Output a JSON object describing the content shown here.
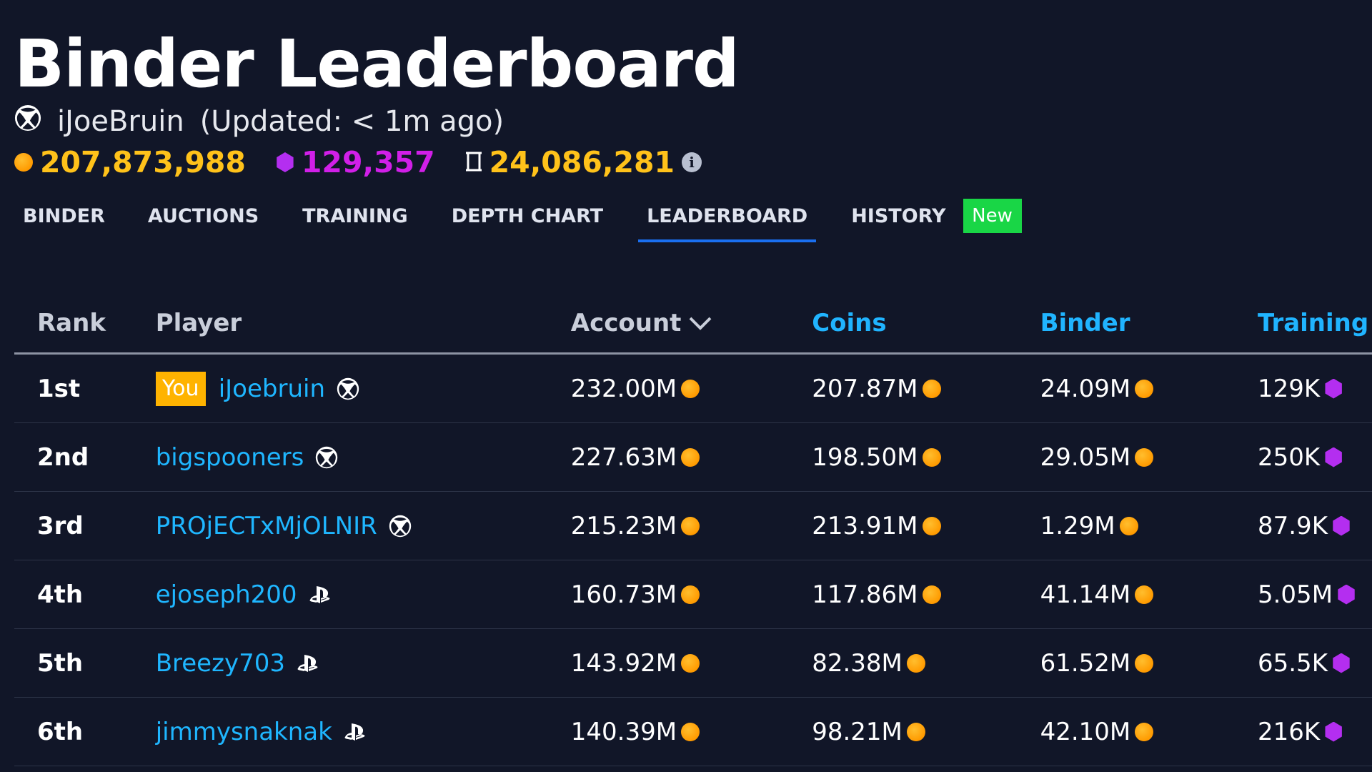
{
  "header": {
    "title": "Binder Leaderboard",
    "username": "iJoeBruin",
    "updated": "(Updated: < 1m ago)",
    "stats": {
      "coins": "207,873,988",
      "gems": "129,357",
      "binder": "24,086,281"
    }
  },
  "tabs": [
    {
      "label": "BINDER"
    },
    {
      "label": "AUCTIONS"
    },
    {
      "label": "TRAINING"
    },
    {
      "label": "DEPTH CHART"
    },
    {
      "label": "LEADERBOARD",
      "active": true
    },
    {
      "label": "HISTORY",
      "badge": "New"
    }
  ],
  "table": {
    "headers": {
      "rank": "Rank",
      "player": "Player",
      "account": "Account",
      "coins": "Coins",
      "binder": "Binder",
      "training": "Training"
    },
    "you_badge": "You",
    "rows": [
      {
        "rank": "1st",
        "player": "iJoebruin",
        "platform": "xbox-icon",
        "you": true,
        "account": "232.00M",
        "coins": "207.87M",
        "binder": "24.09M",
        "training": "129K"
      },
      {
        "rank": "2nd",
        "player": "bigspooners",
        "platform": "xbox-icon",
        "account": "227.63M",
        "coins": "198.50M",
        "binder": "29.05M",
        "training": "250K"
      },
      {
        "rank": "3rd",
        "player": "PROjECTxMjOLNIR",
        "platform": "xbox-icon",
        "account": "215.23M",
        "coins": "213.91M",
        "binder": "1.29M",
        "training": "87.9K"
      },
      {
        "rank": "4th",
        "player": "ejoseph200",
        "platform": "playstation-icon",
        "account": "160.73M",
        "coins": "117.86M",
        "binder": "41.14M",
        "training": "5.05M"
      },
      {
        "rank": "5th",
        "player": "Breezy703",
        "platform": "playstation-icon",
        "account": "143.92M",
        "coins": "82.38M",
        "binder": "61.52M",
        "training": "65.5K"
      },
      {
        "rank": "6th",
        "player": "jimmysnaknak",
        "platform": "playstation-icon",
        "account": "140.39M",
        "coins": "98.21M",
        "binder": "42.10M",
        "training": "216K"
      }
    ]
  },
  "colors": {
    "background": "#111628",
    "coin": "#ff9a00",
    "coin_text": "#ffc21a",
    "gem": "#b42ef0",
    "gem_text": "#d11fe8",
    "link": "#1fb6ff",
    "tab_underline": "#1a6ff0",
    "new_badge": "#19d646",
    "you_badge": "#ffb300"
  }
}
